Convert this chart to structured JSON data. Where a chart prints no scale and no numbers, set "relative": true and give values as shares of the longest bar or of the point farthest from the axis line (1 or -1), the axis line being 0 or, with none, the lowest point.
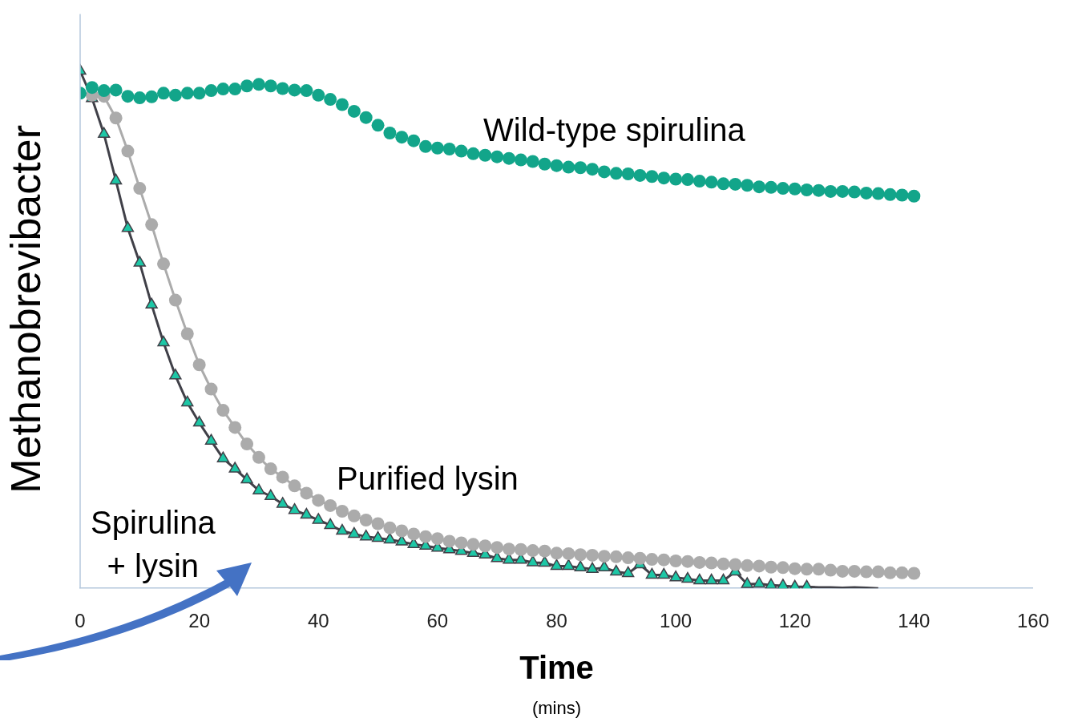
{
  "chart_data": {
    "type": "line",
    "relative": true,
    "xlabel": "Time",
    "ylabel": "Methanobrevibacter",
    "annotations": [
      "(mins)"
    ],
    "xlim": [
      0,
      160
    ],
    "xticks": [
      0,
      20,
      40,
      60,
      80,
      100,
      120,
      140,
      160
    ],
    "grid": false,
    "series": [
      {
        "name": "Wild-type spirulina",
        "type": "scatter",
        "marker": "circle",
        "color": "#12a58a",
        "x": [
          0,
          2,
          4,
          6,
          8,
          10,
          12,
          14,
          16,
          18,
          20,
          22,
          24,
          26,
          28,
          30,
          32,
          34,
          36,
          38,
          40,
          42,
          44,
          46,
          48,
          50,
          52,
          54,
          56,
          58,
          60,
          62,
          64,
          66,
          68,
          70,
          72,
          74,
          76,
          78,
          80,
          82,
          84,
          86,
          88,
          90,
          92,
          94,
          96,
          98,
          100,
          102,
          104,
          106,
          108,
          110,
          112,
          114,
          116,
          118,
          120,
          122,
          124,
          126,
          128,
          130,
          132,
          134,
          136,
          138,
          140
        ],
        "values": [
          0.957,
          0.968,
          0.962,
          0.963,
          0.951,
          0.948,
          0.95,
          0.957,
          0.953,
          0.957,
          0.957,
          0.962,
          0.965,
          0.965,
          0.971,
          0.974,
          0.971,
          0.966,
          0.963,
          0.962,
          0.953,
          0.945,
          0.935,
          0.922,
          0.91,
          0.895,
          0.88,
          0.872,
          0.865,
          0.854,
          0.851,
          0.849,
          0.845,
          0.84,
          0.837,
          0.834,
          0.831,
          0.828,
          0.825,
          0.82,
          0.817,
          0.814,
          0.813,
          0.81,
          0.805,
          0.802,
          0.801,
          0.798,
          0.796,
          0.793,
          0.791,
          0.79,
          0.787,
          0.785,
          0.782,
          0.781,
          0.779,
          0.776,
          0.775,
          0.773,
          0.772,
          0.77,
          0.769,
          0.767,
          0.767,
          0.766,
          0.764,
          0.763,
          0.761,
          0.76,
          0.758
        ]
      },
      {
        "name": "Purified lysin",
        "type": "line",
        "marker": "circle",
        "color": "#ababab",
        "x": [
          2,
          4,
          6,
          8,
          10,
          12,
          14,
          16,
          18,
          20,
          22,
          24,
          26,
          28,
          30,
          32,
          34,
          36,
          38,
          40,
          42,
          44,
          46,
          48,
          50,
          52,
          54,
          56,
          58,
          60,
          62,
          64,
          66,
          68,
          70,
          72,
          74,
          76,
          78,
          80,
          82,
          84,
          86,
          88,
          90,
          92,
          94,
          96,
          98,
          100,
          102,
          104,
          106,
          108,
          110,
          112,
          114,
          116,
          118,
          120,
          122,
          124,
          126,
          128,
          130,
          132,
          134,
          136,
          138,
          140
        ],
        "values": [
          0.953,
          0.951,
          0.909,
          0.845,
          0.773,
          0.703,
          0.627,
          0.557,
          0.492,
          0.432,
          0.385,
          0.344,
          0.311,
          0.279,
          0.253,
          0.231,
          0.215,
          0.198,
          0.184,
          0.17,
          0.16,
          0.149,
          0.14,
          0.132,
          0.125,
          0.117,
          0.111,
          0.105,
          0.1,
          0.096,
          0.091,
          0.088,
          0.085,
          0.082,
          0.079,
          0.076,
          0.075,
          0.073,
          0.072,
          0.068,
          0.067,
          0.065,
          0.064,
          0.062,
          0.061,
          0.059,
          0.058,
          0.056,
          0.055,
          0.053,
          0.052,
          0.05,
          0.049,
          0.047,
          0.046,
          0.044,
          0.043,
          0.041,
          0.04,
          0.038,
          0.037,
          0.037,
          0.035,
          0.033,
          0.033,
          0.032,
          0.032,
          0.03,
          0.03,
          0.029
        ]
      },
      {
        "name": "Spirulina + lysin",
        "type": "line",
        "marker": "triangle",
        "color": "#1dc7a6",
        "x": [
          0,
          2,
          4,
          6,
          8,
          10,
          12,
          14,
          16,
          18,
          20,
          22,
          24,
          26,
          28,
          30,
          32,
          34,
          36,
          38,
          40,
          42,
          44,
          46,
          48,
          50,
          52,
          54,
          56,
          58,
          60,
          62,
          64,
          66,
          68,
          70,
          72,
          74,
          76,
          78,
          80,
          82,
          84,
          86,
          88,
          90,
          92,
          94,
          96,
          98,
          100,
          102,
          104,
          106,
          108,
          110,
          112,
          114,
          116,
          118,
          120,
          122
        ],
        "values": [
          1,
          0.947,
          0.878,
          0.788,
          0.696,
          0.629,
          0.548,
          0.475,
          0.411,
          0.359,
          0.32,
          0.285,
          0.251,
          0.231,
          0.21,
          0.189,
          0.178,
          0.163,
          0.151,
          0.142,
          0.132,
          0.122,
          0.111,
          0.105,
          0.1,
          0.097,
          0.094,
          0.09,
          0.085,
          0.082,
          0.078,
          0.075,
          0.072,
          0.068,
          0.065,
          0.058,
          0.055,
          0.055,
          0.05,
          0.049,
          0.043,
          0.043,
          0.04,
          0.037,
          0.04,
          0.032,
          0.029,
          0.046,
          0.026,
          0.026,
          0.021,
          0.018,
          0.015,
          0.015,
          0.015,
          0.032,
          0.008,
          0.009,
          0.006,
          0.005,
          0.003,
          0.003
        ]
      },
      {
        "type": "line",
        "marker": "none",
        "color": "#404048",
        "x": [
          122,
          124,
          126,
          128,
          130,
          132,
          134
        ],
        "values": [
          0.003,
          0.002,
          0.002,
          0.001,
          0.002,
          0.001,
          0
        ]
      }
    ]
  }
}
